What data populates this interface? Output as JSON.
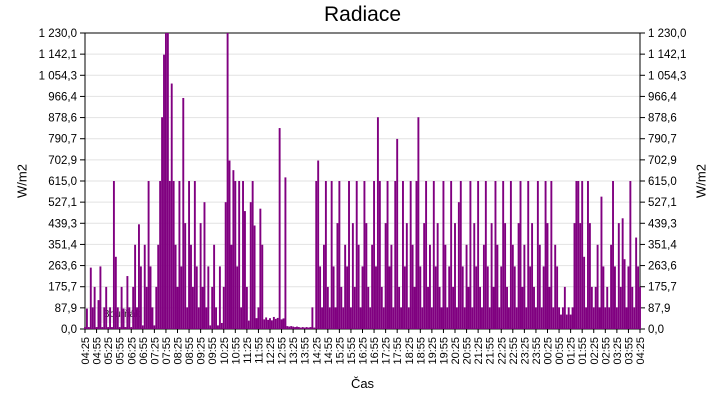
{
  "chart": {
    "title": "Radiace",
    "xlabel": "Čas",
    "ylabel_left": "W/m2",
    "ylabel_right": "W/m2",
    "legend": {
      "label": "Bouřňák"
    }
  },
  "chart_data": {
    "type": "bar",
    "title": "Radiace",
    "xlabel": "Čas",
    "ylabel": "W/m2",
    "series_name": "Bouřňák",
    "ylim": [
      0,
      1230
    ],
    "grid": "horizontal",
    "legend_position": "bottom-left-inside",
    "start_time": "04:25",
    "interval_minutes": 5,
    "y_tick_labels": [
      "1 230,0",
      "1 142,1",
      "1 054,3",
      "966,4",
      "878,6",
      "790,7",
      "702,9",
      "615,0",
      "527,1",
      "439,3",
      "351,4",
      "263,6",
      "175,7",
      "87,9",
      "0,0"
    ],
    "x_tick_labels": [
      "04:25",
      "04:55",
      "05:25",
      "05:55",
      "06:25",
      "06:55",
      "07:25",
      "07:55",
      "08:25",
      "08:55",
      "09:25",
      "09:55",
      "10:25",
      "10:55",
      "11:25",
      "11:55",
      "12:25",
      "12:55",
      "13:25",
      "13:55",
      "14:25",
      "14:55",
      "15:25",
      "15:55",
      "16:25",
      "16:55",
      "17:25",
      "17:55",
      "18:25",
      "18:55",
      "19:25",
      "19:55",
      "20:25",
      "20:55",
      "21:25",
      "21:55",
      "22:25",
      "22:55",
      "23:25",
      "23:55",
      "00:25",
      "00:55",
      "01:25",
      "01:55",
      "02:25",
      "02:55",
      "03:25",
      "03:55",
      "04:25"
    ],
    "values": [
      8,
      85,
      8,
      255,
      90,
      175,
      8,
      120,
      260,
      8,
      90,
      175,
      8,
      90,
      8,
      615,
      300,
      90,
      8,
      175,
      85,
      8,
      220,
      90,
      8,
      175,
      350,
      90,
      435,
      260,
      15,
      350,
      175,
      615,
      260,
      90,
      15,
      175,
      350,
      615,
      880,
      1140,
      1230,
      1230,
      615,
      1020,
      615,
      350,
      175,
      615,
      260,
      960,
      440,
      90,
      615,
      350,
      175,
      615,
      260,
      90,
      440,
      175,
      527,
      90,
      260,
      15,
      175,
      350,
      90,
      15,
      260,
      25,
      175,
      527,
      1230,
      700,
      350,
      660,
      615,
      260,
      615,
      90,
      615,
      490,
      175,
      35,
      527,
      615,
      430,
      45,
      90,
      500,
      350,
      40,
      48,
      38,
      45,
      36,
      50,
      42,
      46,
      835,
      40,
      44,
      630,
      12,
      10,
      12,
      10,
      8,
      10,
      8,
      6,
      8,
      6,
      8,
      6,
      8,
      90,
      6,
      615,
      700,
      260,
      90,
      350,
      615,
      175,
      90,
      615,
      260,
      90,
      440,
      615,
      175,
      90,
      350,
      260,
      615,
      90,
      440,
      175,
      615,
      350,
      90,
      260,
      615,
      440,
      175,
      90,
      350,
      615,
      260,
      880,
      615,
      175,
      90,
      440,
      615,
      260,
      350,
      90,
      615,
      790,
      175,
      90,
      615,
      260,
      440,
      90,
      615,
      350,
      175,
      615,
      880,
      260,
      90,
      440,
      615,
      175,
      350,
      90,
      615,
      260,
      440,
      175,
      90,
      615,
      350,
      90,
      260,
      615,
      175,
      440,
      90,
      527,
      615,
      260,
      90,
      350,
      175,
      615,
      90,
      440,
      260,
      615,
      175,
      90,
      350,
      615,
      260,
      90,
      440,
      175,
      615,
      350,
      90,
      260,
      615,
      440,
      175,
      90,
      615,
      350,
      260,
      90,
      440,
      615,
      175,
      350,
      90,
      615,
      260,
      440,
      175,
      90,
      615,
      350,
      90,
      260,
      615,
      440,
      175,
      615,
      90,
      350,
      260,
      90,
      60,
      90,
      175,
      60,
      90,
      60,
      90,
      440,
      615,
      615,
      440,
      615,
      300,
      90,
      615,
      440,
      175,
      90,
      175,
      350,
      90,
      550,
      260,
      90,
      175,
      90,
      350,
      615,
      260,
      90,
      440,
      175,
      460,
      290,
      90,
      260,
      615,
      175,
      90,
      380,
      260,
      175
    ],
    "colors": {
      "bar": "#800080",
      "grid": "#e2e2e2",
      "frame": "#000000",
      "legend_bg": "#f0f0f0",
      "background": "#ffffff"
    }
  }
}
